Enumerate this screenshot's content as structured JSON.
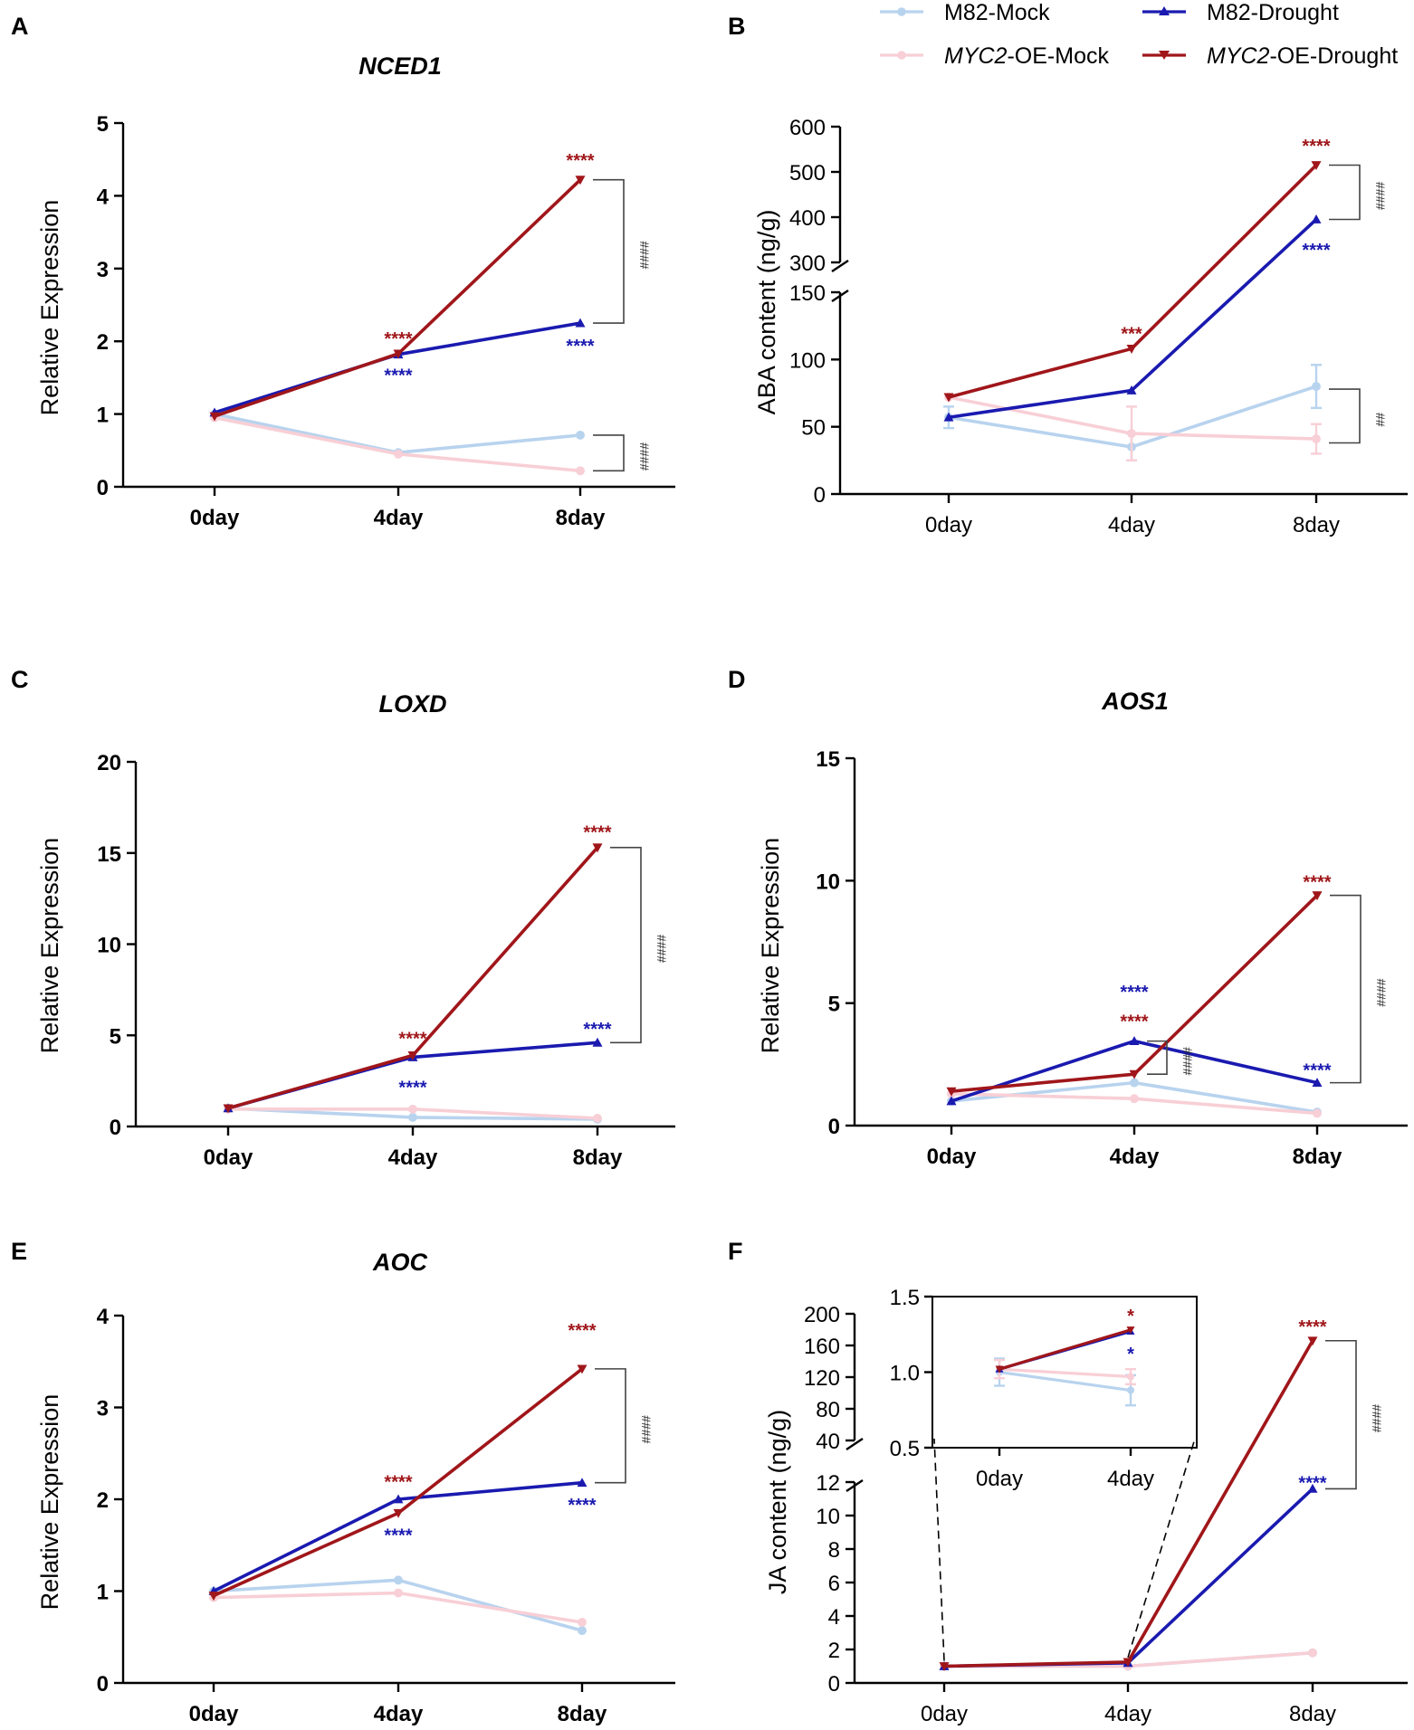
{
  "figure": {
    "legend": [
      {
        "key": "m82_mock",
        "label": "M82-Mock",
        "italic_prefix": "",
        "color": "#b8d3ee",
        "marker": "circle"
      },
      {
        "key": "m82_drought",
        "label": "M82-Drought",
        "italic_prefix": "",
        "color": "#1a1ab0",
        "marker": "triangle-up"
      },
      {
        "key": "oe_mock",
        "label": "-OE-Mock",
        "italic_prefix": "MYC2",
        "color": "#f8cfd6",
        "marker": "circle"
      },
      {
        "key": "oe_drought",
        "label": "-OE-Drought",
        "italic_prefix": "MYC2",
        "color": "#a0161a",
        "marker": "triangle-down"
      }
    ]
  },
  "chart_data": [
    {
      "type": "line",
      "panel": "A",
      "title": "NCED1",
      "title_italic": true,
      "bold_ticks": true,
      "ylabel": "Relative Expression",
      "xlabel": "",
      "categories": [
        "0day",
        "4day",
        "8day"
      ],
      "ylim": [
        0,
        5
      ],
      "yticks": [
        0,
        1,
        2,
        3,
        4,
        5
      ],
      "series": [
        {
          "name": "M82-Mock",
          "values": [
            1.0,
            0.47,
            0.71
          ]
        },
        {
          "name": "MYC2-OE-Mock",
          "values": [
            0.95,
            0.45,
            0.22
          ]
        },
        {
          "name": "M82-Drought",
          "values": [
            1.02,
            1.82,
            2.25
          ]
        },
        {
          "name": "MYC2-OE-Drought",
          "values": [
            0.97,
            1.83,
            4.22
          ]
        }
      ],
      "annotations": [
        {
          "text": "****",
          "x": 1,
          "y": 2.05,
          "color": "#a0161a"
        },
        {
          "text": "****",
          "x": 1,
          "y": 1.55,
          "color": "#1a1ab0"
        },
        {
          "text": "****",
          "x": 2,
          "y": 4.5,
          "color": "#a0161a"
        },
        {
          "text": "****",
          "x": 2,
          "y": 1.95,
          "color": "#1a1ab0"
        }
      ],
      "brackets": [
        {
          "text": "####",
          "y1": 2.25,
          "y2": 4.22
        },
        {
          "text": "####",
          "y1": 0.22,
          "y2": 0.71
        }
      ]
    },
    {
      "type": "line",
      "panel": "B",
      "title": "",
      "title_italic": false,
      "bold_ticks": false,
      "ylabel": "ABA content (ng/g)",
      "xlabel": "",
      "categories": [
        "0day",
        "4day",
        "8day"
      ],
      "broken_axis": {
        "lower": [
          0,
          150
        ],
        "upper": [
          300,
          600
        ]
      },
      "yticks": [
        0,
        50,
        100,
        150,
        300,
        400,
        500,
        600
      ],
      "series": [
        {
          "name": "M82-Mock",
          "values": [
            57,
            35,
            80
          ],
          "errors": [
            8,
            10,
            16
          ]
        },
        {
          "name": "MYC2-OE-Mock",
          "values": [
            72,
            45,
            41
          ],
          "errors": [
            0,
            20,
            11
          ]
        },
        {
          "name": "M82-Drought",
          "values": [
            57,
            77,
            395
          ],
          "errors": [
            0,
            0,
            0
          ]
        },
        {
          "name": "MYC2-OE-Drought",
          "values": [
            72,
            108,
            515
          ],
          "errors": [
            0,
            0,
            0
          ]
        }
      ],
      "annotations": [
        {
          "text": "***",
          "x": 1,
          "y": 120,
          "color": "#a0161a"
        },
        {
          "text": "****",
          "x": 2,
          "y": 560,
          "color": "#a0161a"
        },
        {
          "text": "****",
          "x": 2,
          "y": 330,
          "color": "#1a1ab0"
        }
      ],
      "brackets": [
        {
          "text": "####",
          "y1": 395,
          "y2": 515
        },
        {
          "text": "##",
          "y1": 38,
          "y2": 78
        }
      ]
    },
    {
      "type": "line",
      "panel": "C",
      "title": "LOXD",
      "title_italic": true,
      "bold_ticks": true,
      "ylabel": "Relative Expression",
      "xlabel": "",
      "categories": [
        "0day",
        "4day",
        "8day"
      ],
      "ylim": [
        0,
        20
      ],
      "yticks": [
        0,
        5,
        10,
        15,
        20
      ],
      "series": [
        {
          "name": "M82-Mock",
          "values": [
            1.0,
            0.5,
            0.4
          ]
        },
        {
          "name": "MYC2-OE-Mock",
          "values": [
            0.95,
            0.95,
            0.45
          ]
        },
        {
          "name": "M82-Drought",
          "values": [
            1.0,
            3.8,
            4.6
          ]
        },
        {
          "name": "MYC2-OE-Drought",
          "values": [
            1.0,
            3.9,
            15.3
          ]
        }
      ],
      "annotations": [
        {
          "text": "****",
          "x": 1,
          "y": 4.9,
          "color": "#a0161a"
        },
        {
          "text": "****",
          "x": 1,
          "y": 2.2,
          "color": "#1a1ab0"
        },
        {
          "text": "****",
          "x": 2,
          "y": 16.2,
          "color": "#a0161a"
        },
        {
          "text": "****",
          "x": 2,
          "y": 5.4,
          "color": "#1a1ab0"
        }
      ],
      "brackets": [
        {
          "text": "####",
          "y1": 4.6,
          "y2": 15.3
        }
      ]
    },
    {
      "type": "line",
      "panel": "D",
      "title": "AOS1",
      "title_italic": true,
      "bold_ticks": true,
      "ylabel": "Relative Expression",
      "xlabel": "",
      "categories": [
        "0day",
        "4day",
        "8day"
      ],
      "ylim": [
        0,
        15
      ],
      "yticks": [
        0,
        5,
        10,
        15
      ],
      "series": [
        {
          "name": "M82-Mock",
          "values": [
            1.0,
            1.75,
            0.55
          ]
        },
        {
          "name": "MYC2-OE-Mock",
          "values": [
            1.3,
            1.1,
            0.5
          ]
        },
        {
          "name": "M82-Drought",
          "values": [
            1.0,
            3.45,
            1.75
          ]
        },
        {
          "name": "MYC2-OE-Drought",
          "values": [
            1.4,
            2.1,
            9.4
          ]
        }
      ],
      "annotations": [
        {
          "text": "****",
          "x": 1,
          "y": 5.5,
          "color": "#1a1ab0"
        },
        {
          "text": "****",
          "x": 1,
          "y": 4.3,
          "color": "#a0161a"
        },
        {
          "text": "****",
          "x": 2,
          "y": 10.0,
          "color": "#a0161a"
        },
        {
          "text": "****",
          "x": 2,
          "y": 2.3,
          "color": "#1a1ab0"
        }
      ],
      "brackets": [
        {
          "text": "####",
          "y1": 1.75,
          "y2": 9.4
        },
        {
          "text": "####",
          "y1": 2.1,
          "y2": 3.45,
          "x": 1
        }
      ]
    },
    {
      "type": "line",
      "panel": "E",
      "title": "AOC",
      "title_italic": true,
      "bold_ticks": true,
      "ylabel": "Relative Expression",
      "xlabel": "",
      "categories": [
        "0day",
        "4day",
        "8day"
      ],
      "ylim": [
        0,
        4
      ],
      "yticks": [
        0,
        1,
        2,
        3,
        4
      ],
      "series": [
        {
          "name": "M82-Mock",
          "values": [
            1.0,
            1.12,
            0.57
          ]
        },
        {
          "name": "MYC2-OE-Mock",
          "values": [
            0.93,
            0.98,
            0.66
          ]
        },
        {
          "name": "M82-Drought",
          "values": [
            1.0,
            2.0,
            2.18
          ]
        },
        {
          "name": "MYC2-OE-Drought",
          "values": [
            0.95,
            1.85,
            3.42
          ]
        }
      ],
      "annotations": [
        {
          "text": "****",
          "x": 1,
          "y": 2.2,
          "color": "#a0161a"
        },
        {
          "text": "****",
          "x": 1,
          "y": 1.62,
          "color": "#1a1ab0"
        },
        {
          "text": "****",
          "x": 2,
          "y": 3.85,
          "color": "#a0161a"
        },
        {
          "text": "****",
          "x": 2,
          "y": 1.95,
          "color": "#1a1ab0"
        }
      ],
      "brackets": [
        {
          "text": "####",
          "y1": 2.18,
          "y2": 3.42
        }
      ]
    },
    {
      "type": "line",
      "panel": "F",
      "title": "",
      "title_italic": false,
      "bold_ticks": false,
      "ylabel": "JA content (ng/g)",
      "xlabel": "",
      "categories": [
        "0day",
        "4day",
        "8day"
      ],
      "broken_axis": {
        "lower": [
          0,
          12
        ],
        "upper": [
          40,
          200
        ]
      },
      "yticks": [
        0,
        2,
        4,
        6,
        8,
        10,
        12,
        40,
        80,
        120,
        160,
        200
      ],
      "series": [
        {
          "name": "M82-Mock",
          "values": [
            1.0,
            1.0,
            1.8
          ]
        },
        {
          "name": "MYC2-OE-Mock",
          "values": [
            1.0,
            1.0,
            1.8
          ]
        },
        {
          "name": "M82-Drought",
          "values": [
            1.0,
            1.2,
            11.6
          ]
        },
        {
          "name": "MYC2-OE-Drought",
          "values": [
            1.0,
            1.25,
            166
          ]
        }
      ],
      "annotations": [
        {
          "text": "****",
          "x": 2,
          "y": 185,
          "color": "#a0161a"
        },
        {
          "text": "****",
          "x": 2,
          "y": 12.4,
          "color": "#1a1ab0"
        }
      ],
      "brackets": [
        {
          "text": "####",
          "y1": 11.6,
          "y2": 166
        }
      ],
      "inset": {
        "categories": [
          "0day",
          "4day"
        ],
        "ylim": [
          0.5,
          1.5
        ],
        "yticks": [
          0.5,
          1.0,
          1.5
        ],
        "ytick_labels": [
          "0.5",
          "1.0",
          "1.5"
        ],
        "series": [
          {
            "name": "M82-Mock",
            "values": [
              1.0,
              0.88
            ],
            "errors": [
              0.09,
              0.1
            ]
          },
          {
            "name": "MYC2-OE-Mock",
            "values": [
              1.02,
              0.97
            ],
            "errors": [
              0.06,
              0.05
            ]
          },
          {
            "name": "M82-Drought",
            "values": [
              1.02,
              1.27
            ],
            "errors": [
              0,
              0
            ]
          },
          {
            "name": "MYC2-OE-Drought",
            "values": [
              1.02,
              1.28
            ],
            "errors": [
              0,
              0
            ]
          }
        ],
        "annotations": [
          {
            "text": "*",
            "x": 1,
            "y": 1.38,
            "color": "#a0161a"
          },
          {
            "text": "*",
            "x": 1,
            "y": 1.13,
            "color": "#1a1ab0"
          }
        ]
      }
    }
  ]
}
